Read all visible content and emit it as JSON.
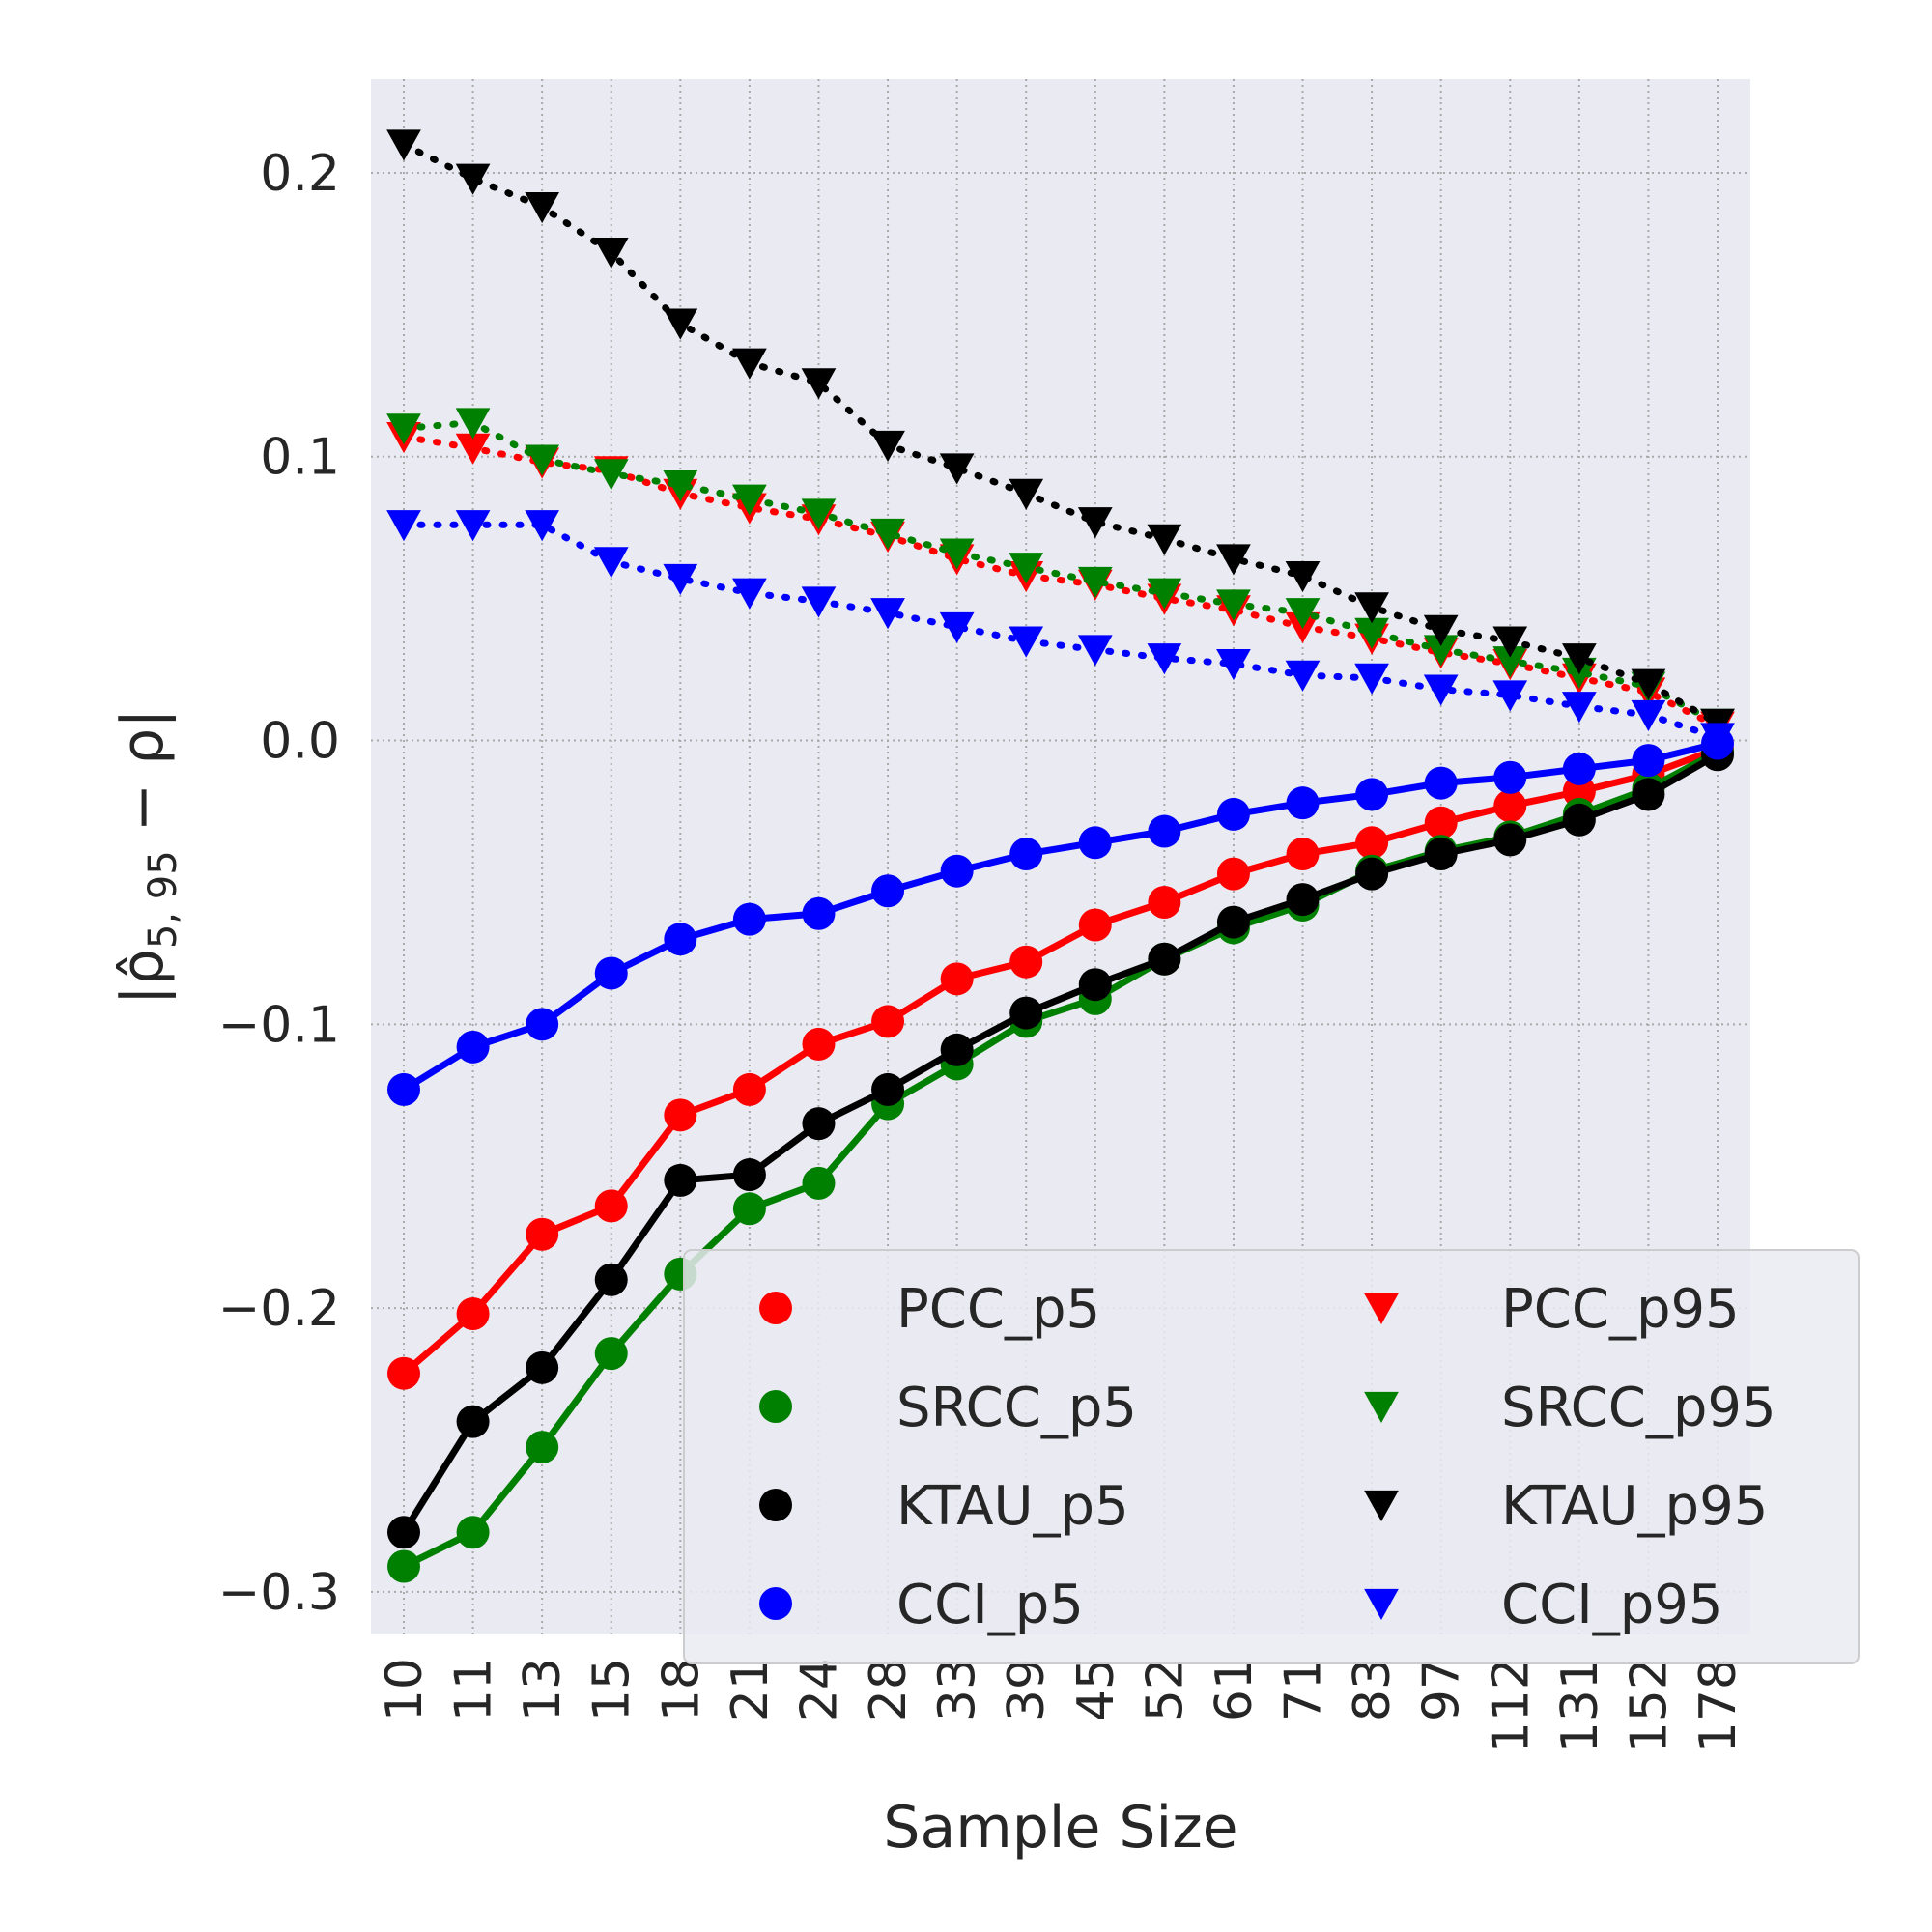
{
  "chart_data": {
    "type": "line",
    "xlabel": "Sample Size",
    "ylabel_text": "|ρ̂",
    "ylabel_subscript": "5, 95",
    "ylabel_suffix": " − ρ|",
    "categories": [
      "10",
      "11",
      "13",
      "15",
      "18",
      "21",
      "24",
      "28",
      "33",
      "39",
      "45",
      "52",
      "61",
      "71",
      "83",
      "97",
      "112",
      "131",
      "152",
      "178"
    ],
    "ylim": [
      -0.315,
      0.233
    ],
    "yticks": [
      {
        "value": 0.2,
        "label": "0.2"
      },
      {
        "value": 0.1,
        "label": "0.1"
      },
      {
        "value": 0.0,
        "label": "0.0"
      },
      {
        "value": -0.1,
        "label": "−0.1"
      },
      {
        "value": -0.2,
        "label": "−0.2"
      },
      {
        "value": -0.3,
        "label": "−0.3"
      }
    ],
    "grid": true,
    "legend_position": "lower-right",
    "legend_columns": 2,
    "series": [
      {
        "name": "PCC_p5",
        "color": "#ff0000",
        "marker": "circle",
        "line": "solid",
        "values": [
          -0.223,
          -0.202,
          -0.174,
          -0.164,
          -0.132,
          -0.123,
          -0.107,
          -0.099,
          -0.084,
          -0.078,
          -0.065,
          -0.057,
          -0.047,
          -0.04,
          -0.036,
          -0.029,
          -0.023,
          -0.018,
          -0.012,
          -0.003
        ]
      },
      {
        "name": "SRCC_p5",
        "color": "#008000",
        "marker": "circle",
        "line": "solid",
        "values": [
          -0.291,
          -0.279,
          -0.249,
          -0.216,
          -0.188,
          -0.165,
          -0.156,
          -0.128,
          -0.114,
          -0.099,
          -0.091,
          -0.077,
          -0.066,
          -0.058,
          -0.046,
          -0.039,
          -0.034,
          -0.026,
          -0.017,
          -0.004
        ]
      },
      {
        "name": "KTAU_p5",
        "color": "#000000",
        "marker": "circle",
        "line": "solid",
        "values": [
          -0.279,
          -0.24,
          -0.221,
          -0.19,
          -0.155,
          -0.153,
          -0.135,
          -0.123,
          -0.109,
          -0.096,
          -0.086,
          -0.077,
          -0.064,
          -0.056,
          -0.047,
          -0.04,
          -0.035,
          -0.028,
          -0.019,
          -0.005
        ]
      },
      {
        "name": "CCI_p5",
        "color": "#0000ff",
        "marker": "circle",
        "line": "solid",
        "values": [
          -0.123,
          -0.108,
          -0.1,
          -0.082,
          -0.07,
          -0.063,
          -0.061,
          -0.053,
          -0.046,
          -0.04,
          -0.036,
          -0.032,
          -0.026,
          -0.022,
          -0.019,
          -0.015,
          -0.013,
          -0.01,
          -0.007,
          -0.001
        ]
      },
      {
        "name": "PCC_p95",
        "color": "#ff0000",
        "marker": "triangle-down",
        "line": "dotted",
        "values": [
          0.107,
          0.103,
          0.098,
          0.095,
          0.087,
          0.082,
          0.078,
          0.072,
          0.064,
          0.058,
          0.055,
          0.05,
          0.046,
          0.04,
          0.036,
          0.031,
          0.027,
          0.022,
          0.017,
          0.005
        ]
      },
      {
        "name": "SRCC_p95",
        "color": "#008000",
        "marker": "triangle-down",
        "line": "dotted",
        "values": [
          0.11,
          0.112,
          0.099,
          0.094,
          0.09,
          0.085,
          0.08,
          0.073,
          0.066,
          0.061,
          0.056,
          0.052,
          0.048,
          0.045,
          0.038,
          0.032,
          0.028,
          0.024,
          0.019,
          0.006
        ]
      },
      {
        "name": "KTAU_p95",
        "color": "#000000",
        "marker": "triangle-down",
        "line": "dotted",
        "values": [
          0.21,
          0.198,
          0.188,
          0.172,
          0.147,
          0.133,
          0.126,
          0.104,
          0.096,
          0.087,
          0.077,
          0.071,
          0.064,
          0.058,
          0.047,
          0.039,
          0.035,
          0.029,
          0.02,
          0.006
        ]
      },
      {
        "name": "CCI_p95",
        "color": "#0000ff",
        "marker": "triangle-down",
        "line": "dotted",
        "values": [
          0.076,
          0.076,
          0.076,
          0.063,
          0.057,
          0.052,
          0.049,
          0.045,
          0.04,
          0.035,
          0.032,
          0.029,
          0.027,
          0.023,
          0.022,
          0.018,
          0.016,
          0.012,
          0.009,
          0.001
        ]
      }
    ]
  }
}
